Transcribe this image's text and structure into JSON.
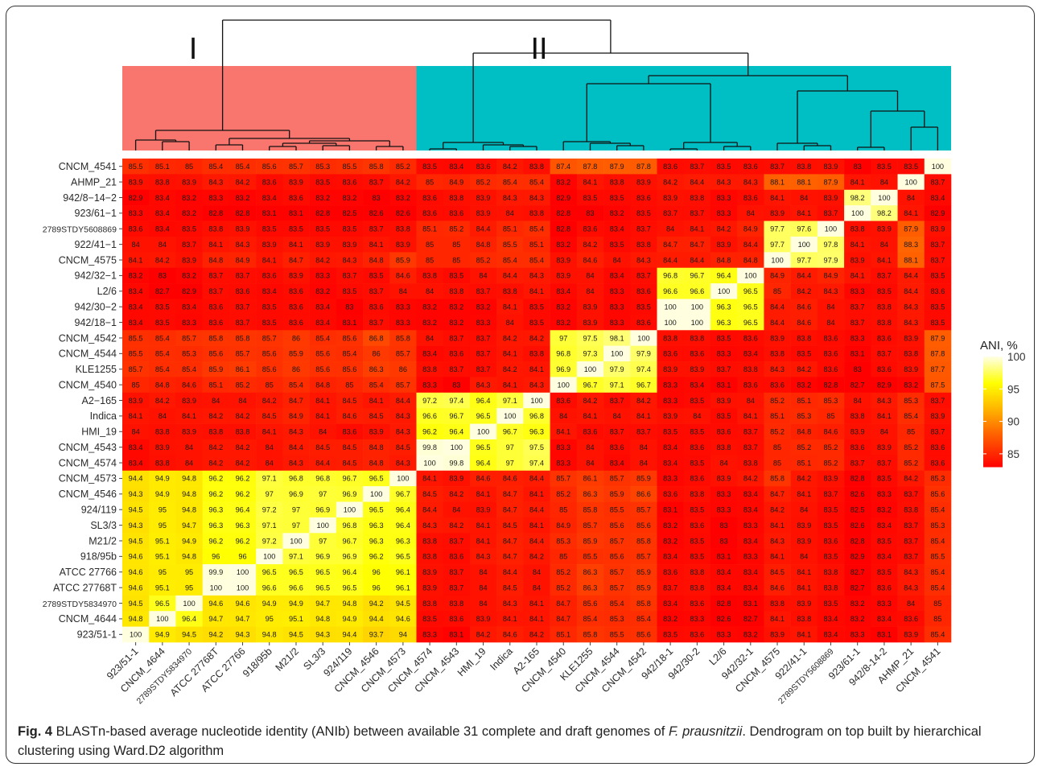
{
  "figure": {
    "caption_label": "Fig. 4",
    "caption_text_1": " BLASTn-based average nucleotide identity (ANIb) between available 31 complete and draft genomes of ",
    "caption_species": "F. prausnitzii",
    "caption_text_2": ". Dendrogram on top built by hierarchical clustering using Ward.D2 algorithm"
  },
  "clusters": [
    {
      "label": "I",
      "color": "#F8766D"
    },
    {
      "label": "II",
      "color": "#00BFC4"
    }
  ],
  "chart_data": {
    "type": "heatmap",
    "title": "",
    "legend": {
      "title": "ANI, %",
      "ticks": [
        100,
        95,
        90,
        85
      ],
      "range": [
        83,
        100
      ],
      "colors": [
        "#FF0000",
        "#FF8C00",
        "#FFFF00",
        "#FFFFE0"
      ]
    },
    "x_labels": [
      "923/51-1",
      "CNCM_4644",
      "2789STDY5834970",
      "ATCC 27768T",
      "ATCC 27766",
      "918/95b",
      "M21/2",
      "SL3/3",
      "924/119",
      "CNCM_4546",
      "CNCM_4573",
      "CNCM_4574",
      "CNCM_4543",
      "HMI_19",
      "Indica",
      "A2-165",
      "CNCM_4540",
      "KLE1255",
      "CNCM_4544",
      "CNCM_4542",
      "942/18-1",
      "942/30-2",
      "L2/6",
      "942/32-1",
      "CNCM_4575",
      "922/41-1",
      "2789STDY5608869",
      "923/61-1",
      "942/8-14-2",
      "AHMP_21",
      "CNCM_4541"
    ],
    "y_labels": [
      "CNCM_4541",
      "AHMP_21",
      "942/8−14−2",
      "923/61−1",
      "2789STDY5608869",
      "922/41−1",
      "CNCM_4575",
      "942/32−1",
      "L2/6",
      "942/30−2",
      "942/18−1",
      "CNCM_4542",
      "CNCM_4544",
      "KLE1255",
      "CNCM_4540",
      "A2−165",
      "Indica",
      "HMI_19",
      "CNCM_4543",
      "CNCM_4574",
      "CNCM_4573",
      "CNCM_4546",
      "924/119",
      "SL3/3",
      "M21/2",
      "918/95b",
      "ATCC 27766",
      "ATCC 27768T",
      "2789STDY5834970",
      "CNCM_4644",
      "923/51-1"
    ],
    "values": [
      [
        "85.5",
        "85.1",
        "85",
        "85.4",
        "85.4",
        "85.6",
        "85.7",
        "85.3",
        "85.5",
        "85.8",
        "85.2",
        "83.5",
        "83.4",
        "83.6",
        "84.2",
        "83.8",
        "87.4",
        "87.8",
        "87.9",
        "87.8",
        "83.6",
        "83.7",
        "83.5",
        "83.6",
        "83.7",
        "83.8",
        "83.9",
        "83",
        "83.5",
        "83.5",
        "100"
      ],
      [
        "83.9",
        "83.8",
        "83.9",
        "84.3",
        "84.2",
        "83.6",
        "83.9",
        "83.5",
        "83.6",
        "83.7",
        "84.2",
        "85",
        "84.9",
        "85.2",
        "85.4",
        "85.4",
        "83.2",
        "84.1",
        "83.8",
        "83.9",
        "84.2",
        "84.4",
        "84.3",
        "84.3",
        "88.1",
        "88.1",
        "87.9",
        "84.1",
        "84",
        "100",
        "83.7"
      ],
      [
        "82.9",
        "83.4",
        "83.2",
        "83.3",
        "83.2",
        "83.4",
        "83.6",
        "83.2",
        "83.2",
        "83",
        "83.2",
        "83.6",
        "83.8",
        "83.9",
        "84.3",
        "84.3",
        "82.9",
        "83.5",
        "83.5",
        "83.6",
        "83.9",
        "83.8",
        "83.3",
        "83.6",
        "84.1",
        "84",
        "83.9",
        "98.2",
        "100",
        "84",
        "83.4"
      ],
      [
        "83.3",
        "83.4",
        "83.2",
        "82.8",
        "82.8",
        "83.1",
        "83.1",
        "82.8",
        "82.5",
        "82.6",
        "82.6",
        "83.6",
        "83.6",
        "83.9",
        "84",
        "83.8",
        "82.8",
        "83",
        "83.2",
        "83.5",
        "83.7",
        "83.7",
        "83.3",
        "84",
        "83.9",
        "84.1",
        "83.7",
        "100",
        "98.2",
        "84.1",
        "82.9"
      ],
      [
        "83.6",
        "83.4",
        "83.5",
        "83.8",
        "83.9",
        "83.5",
        "83.5",
        "83.5",
        "83.5",
        "83.7",
        "83.8",
        "85.1",
        "85.2",
        "84.4",
        "85.1",
        "85.4",
        "82.8",
        "83.6",
        "83.4",
        "83.7",
        "84",
        "84.1",
        "84.2",
        "84.9",
        "97.7",
        "97.6",
        "100",
        "83.8",
        "83.9",
        "87.9",
        "83.9"
      ],
      [
        "84",
        "84",
        "83.7",
        "84.1",
        "84.3",
        "83.9",
        "84.1",
        "83.9",
        "83.9",
        "84.1",
        "83.9",
        "85",
        "85",
        "84.8",
        "85.5",
        "85.1",
        "83.2",
        "84.2",
        "83.5",
        "83.8",
        "84.7",
        "84.7",
        "83.9",
        "84.4",
        "97.7",
        "100",
        "97.8",
        "84.1",
        "84",
        "88.3",
        "83.7"
      ],
      [
        "84.1",
        "84.2",
        "83.9",
        "84.8",
        "84.9",
        "84.1",
        "84.7",
        "84.2",
        "84.3",
        "84.8",
        "85.9",
        "85",
        "85",
        "85.2",
        "85.4",
        "85.4",
        "83.9",
        "84.6",
        "84",
        "84.3",
        "84.4",
        "84.4",
        "84.8",
        "84.8",
        "100",
        "97.7",
        "97.9",
        "83.9",
        "84.1",
        "88.1",
        "83.7"
      ],
      [
        "83.2",
        "83",
        "83.2",
        "83.7",
        "83.7",
        "83.6",
        "83.9",
        "83.3",
        "83.7",
        "83.5",
        "84.6",
        "83.8",
        "83.5",
        "84",
        "84.4",
        "84.3",
        "83.9",
        "84",
        "83.4",
        "83.7",
        "96.8",
        "96.7",
        "96.4",
        "100",
        "84.9",
        "84.4",
        "84.9",
        "84.1",
        "83.7",
        "84.4",
        "83.5"
      ],
      [
        "83.4",
        "82.7",
        "82.9",
        "83.7",
        "83.6",
        "83.4",
        "83.6",
        "83.2",
        "83.5",
        "83.7",
        "84",
        "84",
        "83.8",
        "83.7",
        "83.8",
        "84.1",
        "83.4",
        "84",
        "83.3",
        "83.6",
        "96.6",
        "96.6",
        "100",
        "96.5",
        "85",
        "84.2",
        "84.3",
        "83.3",
        "83.5",
        "84.4",
        "83.6"
      ],
      [
        "83.4",
        "83.5",
        "83.4",
        "83.6",
        "83.7",
        "83.5",
        "83.6",
        "83.4",
        "83",
        "83.6",
        "83.3",
        "83.2",
        "83.2",
        "83.2",
        "84.1",
        "83.5",
        "83.2",
        "83.9",
        "83.3",
        "83.5",
        "100",
        "100",
        "96.3",
        "96.5",
        "84.4",
        "84.6",
        "84",
        "83.7",
        "83.8",
        "84.3",
        "83.5"
      ],
      [
        "83.4",
        "83.5",
        "83.3",
        "83.6",
        "83.7",
        "83.5",
        "83.6",
        "83.4",
        "83.1",
        "83.7",
        "83.3",
        "83.2",
        "83.2",
        "83.3",
        "84",
        "83.5",
        "83.2",
        "83.9",
        "83.3",
        "83.6",
        "100",
        "100",
        "96.3",
        "96.5",
        "84.4",
        "84.6",
        "84",
        "83.7",
        "83.8",
        "84.3",
        "83.5"
      ],
      [
        "85.5",
        "85.4",
        "85.7",
        "85.8",
        "85.8",
        "85.7",
        "86",
        "85.4",
        "85.6",
        "86.8",
        "85.8",
        "84",
        "83.7",
        "83.7",
        "84.2",
        "84.2",
        "97",
        "97.5",
        "98.1",
        "100",
        "83.8",
        "83.8",
        "83.5",
        "83.6",
        "83.9",
        "83.8",
        "83.6",
        "83.3",
        "83.6",
        "83.9",
        "87.9"
      ],
      [
        "85.5",
        "85.4",
        "85.3",
        "85.6",
        "85.7",
        "85.6",
        "85.9",
        "85.6",
        "85.4",
        "86",
        "85.7",
        "83.4",
        "83.6",
        "83.7",
        "84.1",
        "83.8",
        "96.8",
        "97.3",
        "100",
        "97.9",
        "83.6",
        "83.6",
        "83.3",
        "83.4",
        "83.8",
        "83.5",
        "83.6",
        "83.1",
        "83.7",
        "83.8",
        "87.8"
      ],
      [
        "85.7",
        "85.4",
        "85.4",
        "85.9",
        "86.1",
        "85.6",
        "86",
        "85.6",
        "85.6",
        "86.3",
        "86",
        "83.8",
        "83.7",
        "83.7",
        "84.2",
        "84.1",
        "96.9",
        "100",
        "97.9",
        "97.4",
        "83.9",
        "83.9",
        "83.7",
        "83.8",
        "84.3",
        "84.2",
        "83.6",
        "83",
        "83.6",
        "83.9",
        "87.7"
      ],
      [
        "85",
        "84.8",
        "84.6",
        "85.1",
        "85.2",
        "85",
        "85.4",
        "84.8",
        "85",
        "85.4",
        "85.7",
        "83.3",
        "83",
        "84.3",
        "84.1",
        "84.3",
        "100",
        "96.7",
        "97.1",
        "96.7",
        "83.3",
        "83.4",
        "83.1",
        "83.6",
        "83.6",
        "83.2",
        "82.8",
        "82.7",
        "82.9",
        "83.2",
        "87.5"
      ],
      [
        "83.9",
        "84.2",
        "83.9",
        "84",
        "84",
        "84.2",
        "84.7",
        "84.1",
        "84.5",
        "84.1",
        "84.4",
        "97.2",
        "97.4",
        "96.4",
        "97.1",
        "100",
        "83.6",
        "84.2",
        "83.7",
        "84.2",
        "83.3",
        "83.5",
        "83.9",
        "84",
        "85.2",
        "85.1",
        "85.3",
        "84",
        "84.3",
        "85.3",
        "83.7"
      ],
      [
        "84.1",
        "84",
        "84.1",
        "84.2",
        "84.2",
        "84.5",
        "84.9",
        "84.1",
        "84.6",
        "84.5",
        "84.3",
        "96.6",
        "96.7",
        "96.5",
        "100",
        "96.8",
        "84",
        "84.1",
        "84",
        "84.1",
        "83.9",
        "84",
        "83.5",
        "84.1",
        "85.1",
        "85.3",
        "85",
        "83.8",
        "84.1",
        "85.4",
        "83.9"
      ],
      [
        "84",
        "83.8",
        "83.9",
        "83.8",
        "83.8",
        "84.1",
        "84.3",
        "84",
        "83.6",
        "83.9",
        "84.3",
        "96.2",
        "96.4",
        "100",
        "96.7",
        "96.3",
        "84.1",
        "83.6",
        "83.7",
        "83.7",
        "83.5",
        "83.5",
        "83.6",
        "83.7",
        "85.2",
        "84.8",
        "84.6",
        "83.9",
        "84",
        "85",
        "83.7"
      ],
      [
        "83.4",
        "83.9",
        "84",
        "84.2",
        "84.2",
        "84",
        "84.4",
        "84.5",
        "84.5",
        "84.8",
        "84.5",
        "99.8",
        "100",
        "96.5",
        "97",
        "97.5",
        "83.3",
        "84",
        "83.6",
        "84",
        "83.4",
        "83.6",
        "83.8",
        "83.7",
        "85",
        "85.2",
        "85.2",
        "83.6",
        "83.9",
        "85.2",
        "83.6"
      ],
      [
        "83.4",
        "83.8",
        "84",
        "84.2",
        "84.2",
        "84",
        "84.3",
        "84.4",
        "84.5",
        "84.8",
        "84.3",
        "100",
        "99.8",
        "96.4",
        "97",
        "97.4",
        "83.3",
        "84",
        "83.4",
        "84",
        "83.4",
        "83.5",
        "84",
        "83.8",
        "85",
        "85.1",
        "85.2",
        "83.7",
        "83.7",
        "85.2",
        "83.6"
      ],
      [
        "94.4",
        "94.9",
        "94.8",
        "96.2",
        "96.2",
        "97.1",
        "96.8",
        "96.8",
        "96.7",
        "96.5",
        "100",
        "84.1",
        "83.9",
        "84.6",
        "84.6",
        "84.4",
        "85.7",
        "86.1",
        "85.7",
        "85.9",
        "83.3",
        "83.6",
        "83.9",
        "84.2",
        "85.8",
        "84.2",
        "83.9",
        "82.8",
        "83.5",
        "84.2",
        "85.3"
      ],
      [
        "94.3",
        "94.9",
        "94.8",
        "96.2",
        "96.2",
        "97",
        "96.9",
        "97",
        "96.9",
        "100",
        "96.7",
        "84.5",
        "84.2",
        "84.1",
        "84.7",
        "84.1",
        "85.2",
        "86.3",
        "85.9",
        "86.6",
        "83.6",
        "83.8",
        "83.3",
        "83.4",
        "84.7",
        "84.1",
        "83.7",
        "82.6",
        "83.3",
        "83.7",
        "85.6"
      ],
      [
        "94.5",
        "95",
        "94.8",
        "96.3",
        "96.4",
        "97.2",
        "97",
        "96.9",
        "100",
        "96.5",
        "96.4",
        "84.4",
        "84",
        "83.9",
        "84.7",
        "84.4",
        "85",
        "85.8",
        "85.5",
        "85.7",
        "83.1",
        "83.5",
        "83.3",
        "83.4",
        "84.2",
        "84",
        "83.5",
        "82.5",
        "83.2",
        "83.8",
        "85.4"
      ],
      [
        "94.3",
        "95",
        "94.7",
        "96.3",
        "96.3",
        "97.1",
        "97",
        "100",
        "96.8",
        "96.3",
        "96.4",
        "84.3",
        "84.2",
        "84.1",
        "84.5",
        "84.1",
        "84.9",
        "85.7",
        "85.6",
        "85.6",
        "83.2",
        "83.6",
        "83",
        "83.3",
        "84.1",
        "83.9",
        "83.5",
        "82.6",
        "83.4",
        "83.7",
        "85.3"
      ],
      [
        "94.5",
        "95.1",
        "94.9",
        "96.2",
        "96.2",
        "97.2",
        "100",
        "97",
        "96.7",
        "96.3",
        "96.3",
        "83.8",
        "83.7",
        "84.1",
        "84.7",
        "84.4",
        "85.3",
        "85.9",
        "85.7",
        "85.8",
        "83.2",
        "83.5",
        "83",
        "83.4",
        "84.3",
        "83.9",
        "83.6",
        "82.8",
        "83.5",
        "83.7",
        "85.4"
      ],
      [
        "94.6",
        "95.1",
        "94.8",
        "96",
        "96",
        "100",
        "97.1",
        "96.9",
        "96.9",
        "96.2",
        "96.5",
        "83.8",
        "83.6",
        "84.3",
        "84.7",
        "84.2",
        "85",
        "85.5",
        "85.6",
        "85.7",
        "83.4",
        "83.5",
        "83.1",
        "83.3",
        "84.1",
        "84",
        "83.5",
        "82.9",
        "83.4",
        "83.7",
        "85.5"
      ],
      [
        "94.6",
        "95",
        "95",
        "99.9",
        "100",
        "96.5",
        "96.5",
        "96.5",
        "96.4",
        "96",
        "96.1",
        "83.9",
        "83.7",
        "84",
        "84.4",
        "84",
        "85.2",
        "86.3",
        "85.7",
        "85.9",
        "83.6",
        "83.8",
        "83.4",
        "83.4",
        "84.5",
        "84.1",
        "83.8",
        "82.7",
        "83.5",
        "84.3",
        "85.4"
      ],
      [
        "94.6",
        "95.1",
        "95",
        "100",
        "100",
        "96.6",
        "96.6",
        "96.5",
        "96.5",
        "96",
        "96.1",
        "83.9",
        "83.7",
        "84",
        "84.5",
        "84",
        "85.2",
        "86.3",
        "85.7",
        "85.9",
        "83.7",
        "83.8",
        "83.4",
        "83.4",
        "84.6",
        "84.1",
        "83.8",
        "82.7",
        "83.6",
        "84.3",
        "85.4"
      ],
      [
        "94.5",
        "96.5",
        "100",
        "94.6",
        "94.6",
        "94.9",
        "94.9",
        "94.7",
        "94.8",
        "94.2",
        "94.5",
        "83.8",
        "83.8",
        "84",
        "84.3",
        "84.1",
        "84.7",
        "85.6",
        "85.4",
        "85.8",
        "83.4",
        "83.6",
        "82.8",
        "83.1",
        "83.8",
        "83.9",
        "83.5",
        "83.2",
        "83.3",
        "84",
        "85"
      ],
      [
        "94.8",
        "100",
        "96.4",
        "94.7",
        "94.7",
        "95",
        "95.1",
        "94.8",
        "94.9",
        "94.4",
        "94.6",
        "83.5",
        "83.6",
        "83.9",
        "84.1",
        "84.1",
        "84.7",
        "85.4",
        "85.3",
        "85.4",
        "83.2",
        "83.3",
        "82.6",
        "82.7",
        "84.1",
        "83.8",
        "83.4",
        "83.2",
        "83.4",
        "83.6",
        "85"
      ],
      [
        "100",
        "94.9",
        "94.5",
        "94.2",
        "94.3",
        "94.8",
        "94.5",
        "94.3",
        "94.4",
        "93.7",
        "94",
        "83.3",
        "83.1",
        "84.2",
        "84.6",
        "84.2",
        "85.1",
        "85.8",
        "85.5",
        "85.6",
        "83.5",
        "83.6",
        "83.3",
        "83.2",
        "83.9",
        "84.1",
        "83.4",
        "83.3",
        "83.1",
        "83.9",
        "85.4"
      ]
    ]
  }
}
